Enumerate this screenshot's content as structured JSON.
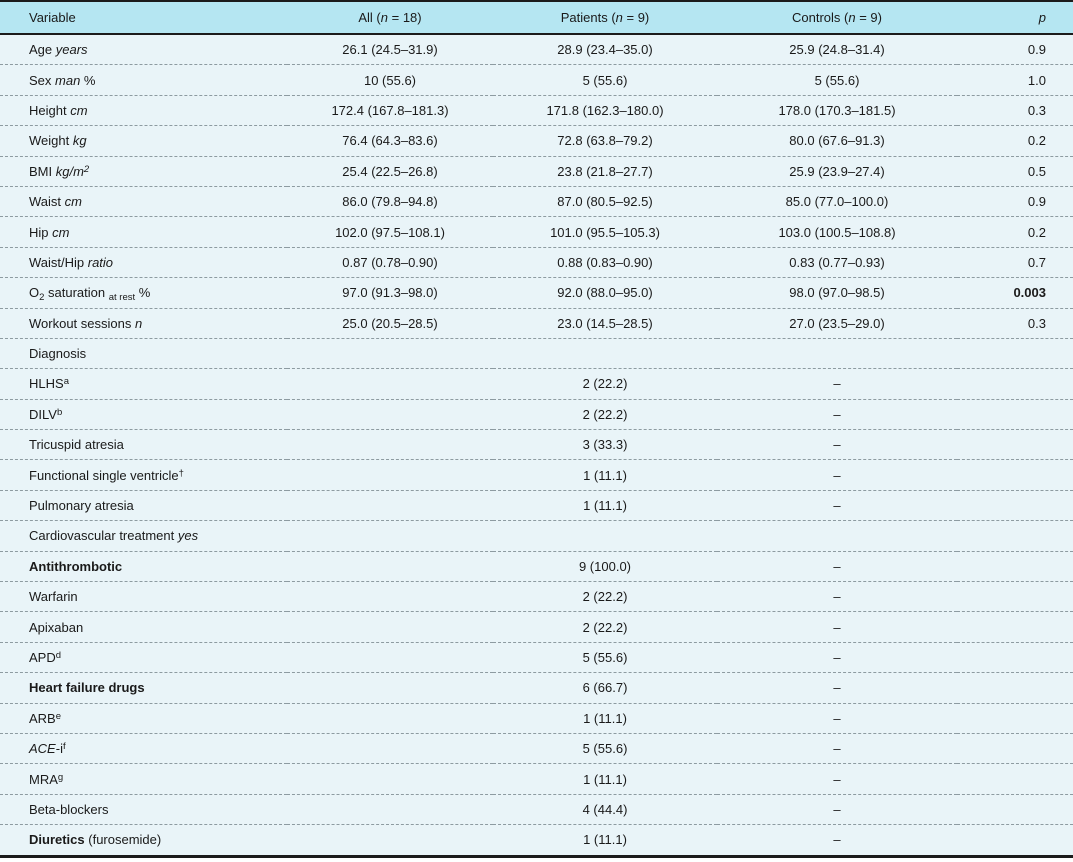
{
  "colors": {
    "header_bg": "#b5e6f2",
    "body_bg": "#e9f4f8",
    "rule_dark": "#1b1b1b",
    "row_divider": "#8d9ba1",
    "text": "#1a1a1a"
  },
  "table": {
    "columns": [
      "Variable",
      [
        {
          "t": "All ("
        },
        {
          "t": "n",
          "s": "i"
        },
        {
          "t": " = 18)"
        }
      ],
      [
        {
          "t": "Patients ("
        },
        {
          "t": "n",
          "s": "i"
        },
        {
          "t": " = 9)"
        }
      ],
      [
        {
          "t": "Controls ("
        },
        {
          "t": "n",
          "s": "i"
        },
        {
          "t": " = 9)"
        }
      ],
      [
        {
          "t": "p",
          "s": "i"
        }
      ]
    ],
    "rows": [
      {
        "label": [
          {
            "t": "Age "
          },
          {
            "t": "years",
            "s": "i"
          }
        ],
        "all": "26.1 (24.5–31.9)",
        "patients": "28.9 (23.4–35.0)",
        "controls": "25.9 (24.8–31.4)",
        "p": "0.9"
      },
      {
        "label": [
          {
            "t": "Sex "
          },
          {
            "t": "man",
            "s": "i"
          },
          {
            "t": " %"
          }
        ],
        "all": "10 (55.6)",
        "patients": "5 (55.6)",
        "controls": "5 (55.6)",
        "p": "1.0"
      },
      {
        "label": [
          {
            "t": "Height "
          },
          {
            "t": "cm",
            "s": "i"
          }
        ],
        "all": "172.4 (167.8–181.3)",
        "patients": "171.8 (162.3–180.0)",
        "controls": "178.0 (170.3–181.5)",
        "p": "0.3"
      },
      {
        "label": [
          {
            "t": "Weight "
          },
          {
            "t": "kg",
            "s": "i"
          }
        ],
        "all": "76.4 (64.3–83.6)",
        "patients": "72.8 (63.8–79.2)",
        "controls": "80.0 (67.6–91.3)",
        "p": "0.2"
      },
      {
        "label": [
          {
            "t": "BMI "
          },
          {
            "t": "kg/m",
            "s": "i"
          },
          {
            "t": "2",
            "s": "sup i"
          }
        ],
        "all": "25.4 (22.5–26.8)",
        "patients": "23.8 (21.8–27.7)",
        "controls": "25.9 (23.9–27.4)",
        "p": "0.5"
      },
      {
        "label": [
          {
            "t": "Waist "
          },
          {
            "t": "cm",
            "s": "i"
          }
        ],
        "all": "86.0 (79.8–94.8)",
        "patients": "87.0 (80.5–92.5)",
        "controls": "85.0 (77.0–100.0)",
        "p": "0.9"
      },
      {
        "label": [
          {
            "t": "Hip "
          },
          {
            "t": "cm",
            "s": "i"
          }
        ],
        "all": "102.0 (97.5–108.1)",
        "patients": "101.0 (95.5–105.3)",
        "controls": "103.0 (100.5–108.8)",
        "p": "0.2"
      },
      {
        "label": [
          {
            "t": "Waist/Hip "
          },
          {
            "t": "ratio",
            "s": "i"
          }
        ],
        "all": "0.87 (0.78–0.90)",
        "patients": "0.88 (0.83–0.90)",
        "controls": "0.83 (0.77–0.93)",
        "p": "0.7"
      },
      {
        "label": [
          {
            "t": "O"
          },
          {
            "t": "2",
            "s": "sub"
          },
          {
            "t": " saturation "
          },
          {
            "t": "at rest",
            "s": "sub"
          },
          {
            "t": " %"
          }
        ],
        "all": "97.0 (91.3–98.0)",
        "patients": "92.0 (88.0–95.0)",
        "controls": "98.0 (97.0–98.5)",
        "p": [
          {
            "t": "0.003",
            "s": "b"
          }
        ]
      },
      {
        "label": [
          {
            "t": "Workout sessions "
          },
          {
            "t": "n",
            "s": "i"
          }
        ],
        "all": "25.0 (20.5–28.5)",
        "patients": "23.0 (14.5–28.5)",
        "controls": "27.0 (23.5–29.0)",
        "p": "0.3"
      },
      {
        "label": [
          {
            "t": "Diagnosis"
          }
        ],
        "all": "",
        "patients": "",
        "controls": "",
        "p": ""
      },
      {
        "label": [
          {
            "t": "HLHS"
          },
          {
            "t": "a",
            "s": "sup"
          }
        ],
        "all": "",
        "patients": "2 (22.2)",
        "controls": "–",
        "p": ""
      },
      {
        "label": [
          {
            "t": "DILV"
          },
          {
            "t": "b",
            "s": "sup"
          }
        ],
        "all": "",
        "patients": "2 (22.2)",
        "controls": "–",
        "p": ""
      },
      {
        "label": [
          {
            "t": "Tricuspid atresia"
          }
        ],
        "all": "",
        "patients": "3 (33.3)",
        "controls": "–",
        "p": ""
      },
      {
        "label": [
          {
            "t": "Functional single ventricle"
          },
          {
            "t": "†",
            "s": "sup"
          }
        ],
        "all": "",
        "patients": "1 (11.1)",
        "controls": "–",
        "p": ""
      },
      {
        "label": [
          {
            "t": "Pulmonary atresia"
          }
        ],
        "all": "",
        "patients": "1 (11.1)",
        "controls": "–",
        "p": ""
      },
      {
        "label": [
          {
            "t": "Cardiovascular treatment "
          },
          {
            "t": "yes",
            "s": "i"
          }
        ],
        "all": "",
        "patients": "",
        "controls": "",
        "p": ""
      },
      {
        "label": [
          {
            "t": "Antithrombotic",
            "s": "b"
          }
        ],
        "all": "",
        "patients": "9 (100.0)",
        "controls": "–",
        "p": ""
      },
      {
        "label": [
          {
            "t": "Warfarin"
          }
        ],
        "all": "",
        "patients": "2 (22.2)",
        "controls": "–",
        "p": ""
      },
      {
        "label": [
          {
            "t": "Apixaban"
          }
        ],
        "all": "",
        "patients": "2 (22.2)",
        "controls": "–",
        "p": ""
      },
      {
        "label": [
          {
            "t": "APD"
          },
          {
            "t": "d",
            "s": "sup"
          }
        ],
        "all": "",
        "patients": "5 (55.6)",
        "controls": "–",
        "p": ""
      },
      {
        "label": [
          {
            "t": "Heart failure drugs",
            "s": "b"
          }
        ],
        "all": "",
        "patients": "6 (66.7)",
        "controls": "–",
        "p": ""
      },
      {
        "label": [
          {
            "t": "ARB"
          },
          {
            "t": "e",
            "s": "sup"
          }
        ],
        "all": "",
        "patients": "1 (11.1)",
        "controls": "–",
        "p": ""
      },
      {
        "label": [
          {
            "t": "ACE",
            "s": "i"
          },
          {
            "t": "-i"
          },
          {
            "t": "f",
            "s": "sup"
          }
        ],
        "all": "",
        "patients": "5 (55.6)",
        "controls": "–",
        "p": ""
      },
      {
        "label": [
          {
            "t": "MRA"
          },
          {
            "t": "g",
            "s": "sup"
          }
        ],
        "all": "",
        "patients": "1 (11.1)",
        "controls": "–",
        "p": ""
      },
      {
        "label": [
          {
            "t": "Beta-blockers"
          }
        ],
        "all": "",
        "patients": "4 (44.4)",
        "controls": "–",
        "p": ""
      },
      {
        "label": [
          {
            "t": "Diuretics",
            "s": "b"
          },
          {
            "t": " (furosemide)"
          }
        ],
        "all": "",
        "patients": "1 (11.1)",
        "controls": "–",
        "p": ""
      }
    ]
  }
}
